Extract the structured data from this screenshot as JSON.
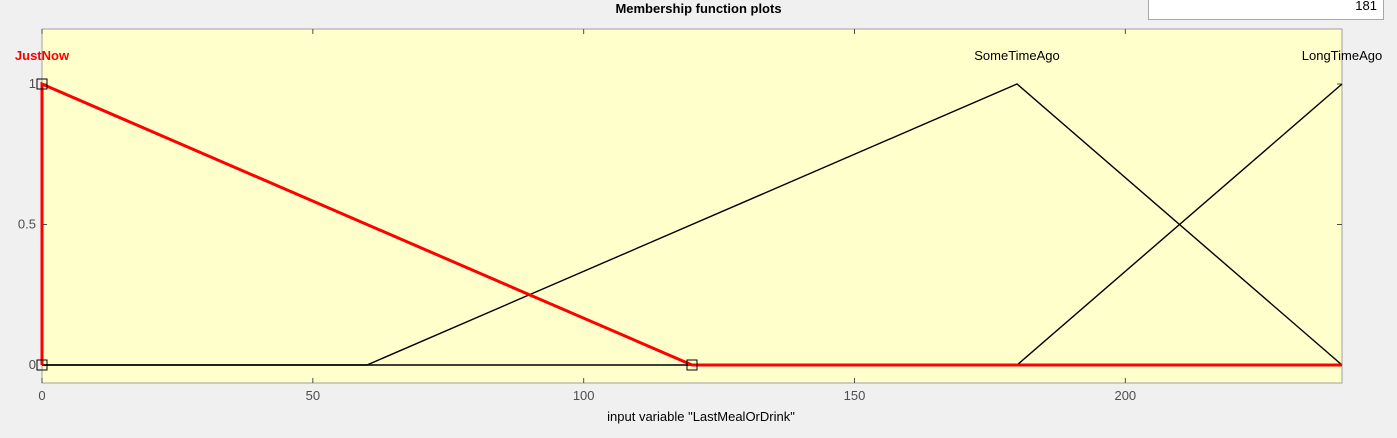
{
  "title": "Membership function plots",
  "range_value": "181",
  "colors": {
    "plot_background": "#ffffcc",
    "selected": "#ff0000",
    "normal": "#000000"
  },
  "chart_data": {
    "type": "line",
    "title": "Membership function plots",
    "xlabel": "input variable \"LastMealOrDrink\"",
    "ylabel": "",
    "xlim": [
      0,
      240
    ],
    "ylim": [
      0,
      1
    ],
    "xticks": [
      0,
      50,
      100,
      150,
      200
    ],
    "yticks": [
      0,
      0.5,
      1
    ],
    "grid": false,
    "selected_series": "JustNow",
    "series": [
      {
        "name": "JustNow",
        "x": [
          0,
          0,
          120,
          240
        ],
        "y": [
          0,
          1,
          0,
          0
        ],
        "selected": true
      },
      {
        "name": "SomeTimeAgo",
        "x": [
          0,
          60,
          180,
          240
        ],
        "y": [
          0,
          0,
          1,
          0
        ],
        "selected": false
      },
      {
        "name": "LongTimeAgo",
        "x": [
          0,
          180,
          240
        ],
        "y": [
          0,
          0,
          1
        ],
        "selected": false
      }
    ]
  }
}
